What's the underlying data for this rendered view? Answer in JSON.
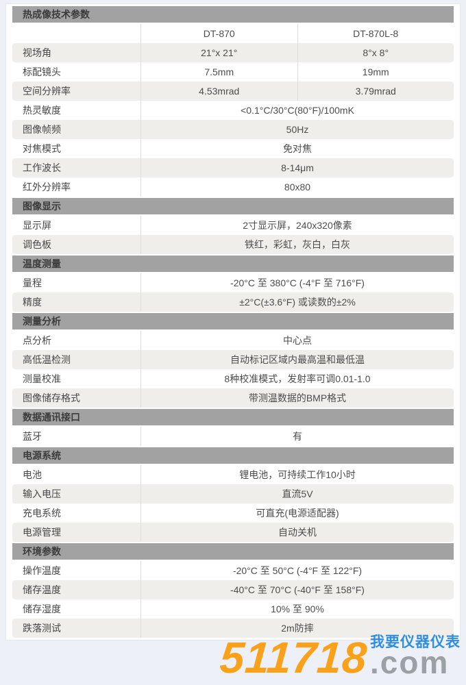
{
  "colors": {
    "page_background": "#edf1f7",
    "card_background": "#ffffff",
    "section_bar": "#a2a2a2",
    "row_tint": "#efeeea",
    "divider": "#dcdcdc",
    "watermark_orange": "#f9a11b",
    "watermark_gray": "#9aa0a4",
    "watermark_blue": "#2f8ee0"
  },
  "sections": [
    {
      "title": "热成像技术参数",
      "rows": [
        {
          "label": "",
          "values": [
            "DT-870",
            "DT-870L-8"
          ],
          "is_header": true
        },
        {
          "label": "视场角",
          "values": [
            "21°x 21°",
            "8°x 8°"
          ]
        },
        {
          "label": "标配镜头",
          "values": [
            "7.5mm",
            "19mm"
          ]
        },
        {
          "label": "空间分辨率",
          "values": [
            "4.53mrad",
            "3.79mrad"
          ]
        },
        {
          "label": "热灵敏度",
          "value": "<0.1°C/30°C(80°F)/100mK"
        },
        {
          "label": "图像帧频",
          "value": "50Hz"
        },
        {
          "label": "对焦模式",
          "value": "免对焦"
        },
        {
          "label": "工作波长",
          "value": "8-14μm"
        },
        {
          "label": "红外分辨率",
          "value": "80x80"
        }
      ]
    },
    {
      "title": "图像显示",
      "rows": [
        {
          "label": "显示屏",
          "value": "2寸显示屏，240x320像素"
        },
        {
          "label": "调色板",
          "value": "铁红，彩虹，灰白，白灰"
        }
      ]
    },
    {
      "title": "温度测量",
      "rows": [
        {
          "label": "量程",
          "value": "-20°C 至 380°C (-4°F 至 716°F)"
        },
        {
          "label": "精度",
          "value": "±2°C(±3.6°F) 或读数的±2%"
        }
      ]
    },
    {
      "title": "测量分析",
      "rows": [
        {
          "label": "点分析",
          "value": "中心点"
        },
        {
          "label": "高低温检测",
          "value": "自动标记区域内最高温和最低温"
        },
        {
          "label": "测量校准",
          "value": "8种校准模式，发射率可调0.01-1.0"
        },
        {
          "label": "图像储存格式",
          "value": "带测温数据的BMP格式"
        }
      ]
    },
    {
      "title": "数据通讯接口",
      "rows": [
        {
          "label": "蓝牙",
          "value": "有"
        }
      ]
    },
    {
      "title": "电源系统",
      "rows": [
        {
          "label": "电池",
          "value": "锂电池，可持续工作10小时"
        },
        {
          "label": "输入电压",
          "value": "直流5V"
        },
        {
          "label": "充电系统",
          "value": "可直充(电源适配器)"
        },
        {
          "label": "电源管理",
          "value": "自动关机"
        }
      ]
    },
    {
      "title": "环境参数",
      "rows": [
        {
          "label": "操作温度",
          "value": "-20°C 至 50°C (-4°F 至 122°F)"
        },
        {
          "label": "储存温度",
          "value": "-40°C 至 70°C (-40°F 至 158°F)"
        },
        {
          "label": "储存湿度",
          "value": "10% 至 90%"
        },
        {
          "label": "跌落测试",
          "value": "2m防摔"
        }
      ]
    }
  ],
  "watermark": {
    "number": "511718",
    "suffix": ".com",
    "tagline": "我要仪器仪表"
  }
}
